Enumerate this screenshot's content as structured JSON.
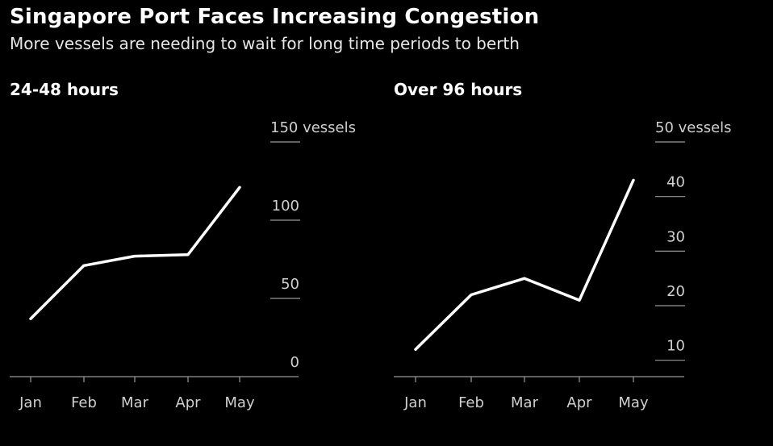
{
  "header": {
    "title": "Singapore Port Faces Increasing Congestion",
    "subtitle": "More vessels are needing to wait for long time periods to berth"
  },
  "colors": {
    "background": "#000000",
    "line": "#ffffff",
    "text": "#cfcfcf"
  },
  "chart_data": [
    {
      "type": "line",
      "title": "24-48 hours",
      "categories": [
        "Jan",
        "Feb",
        "Mar",
        "Apr",
        "May"
      ],
      "values": [
        37,
        71,
        77,
        78,
        121
      ],
      "ylim": [
        0,
        150
      ],
      "yticks": [
        0,
        50,
        100,
        150
      ],
      "ytick_labels": [
        "0",
        "50",
        "100",
        "150 vessels"
      ],
      "grid": false,
      "y_axis_side": "right"
    },
    {
      "type": "line",
      "title": "Over 96 hours",
      "categories": [
        "Jan",
        "Feb",
        "Mar",
        "Apr",
        "May"
      ],
      "values": [
        12,
        22,
        25,
        21,
        43
      ],
      "ylim": [
        7,
        50
      ],
      "yticks": [
        10,
        20,
        30,
        40,
        50
      ],
      "ytick_labels": [
        "10",
        "20",
        "30",
        "40",
        "50 vessels"
      ],
      "grid": false,
      "y_axis_side": "right"
    }
  ]
}
